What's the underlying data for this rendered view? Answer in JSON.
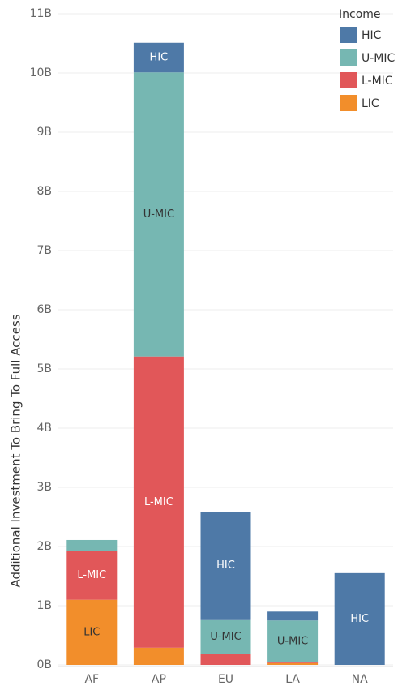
{
  "chart_data": {
    "type": "stacked_bar",
    "y_label": "Additional Investment To Bring To Full Access",
    "legend_title": "Income",
    "categories": [
      "AF",
      "AP",
      "EU",
      "LA",
      "NA"
    ],
    "series": [
      {
        "name": "LIC",
        "color": "#f28e2b",
        "label_color": "#333333",
        "values": [
          1.1,
          0.29,
          0,
          0.03,
          0
        ]
      },
      {
        "name": "L-MIC",
        "color": "#e15759",
        "label_color": "#ffffff",
        "values": [
          0.83,
          4.92,
          0.18,
          0.02,
          0
        ]
      },
      {
        "name": "U-MIC",
        "color": "#76b7b2",
        "label_color": "#333333",
        "values": [
          0.18,
          4.8,
          0.59,
          0.7,
          0
        ]
      },
      {
        "name": "HIC",
        "color": "#4e79a7",
        "label_color": "#ffffff",
        "values": [
          0,
          0.5,
          1.81,
          0.15,
          1.55
        ]
      }
    ],
    "ylim": [
      0,
      11
    ],
    "yticks": [
      {
        "value": 0,
        "label": "0B"
      },
      {
        "value": 1,
        "label": "1B"
      },
      {
        "value": 2,
        "label": "2B"
      },
      {
        "value": 3,
        "label": "3B"
      },
      {
        "value": 4,
        "label": "4B"
      },
      {
        "value": 5,
        "label": "5B"
      },
      {
        "value": 6,
        "label": "6B"
      },
      {
        "value": 7,
        "label": "7B"
      },
      {
        "value": 8,
        "label": "8B"
      },
      {
        "value": 9,
        "label": "9B"
      },
      {
        "value": 10,
        "label": "10B"
      },
      {
        "value": 11,
        "label": "11B"
      }
    ],
    "grid": true,
    "legend": "top-right"
  }
}
